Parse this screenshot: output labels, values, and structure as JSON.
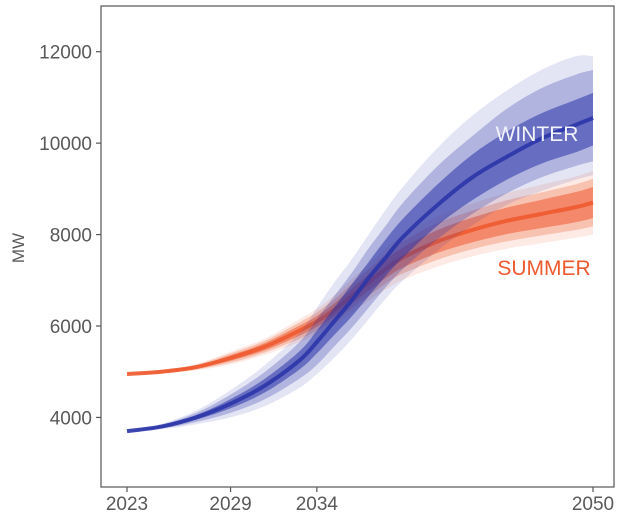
{
  "chart_data": {
    "type": "area",
    "title": "",
    "xlabel": "",
    "ylabel": "MW",
    "xlim": [
      2023,
      2050
    ],
    "ylim": [
      2500,
      13000
    ],
    "x_ticks": [
      2023,
      2029,
      2034,
      2050
    ],
    "y_ticks": [
      4000,
      6000,
      8000,
      10000,
      12000
    ],
    "grid": false,
    "legend": "none",
    "series": [
      {
        "name": "WINTER",
        "color": "#2b35a8",
        "x": [
          2023,
          2025,
          2027,
          2029,
          2031,
          2033,
          2034,
          2035,
          2036,
          2037,
          2038,
          2039,
          2041,
          2043,
          2045,
          2047,
          2049,
          2050
        ],
        "median": [
          3700,
          3800,
          4000,
          4300,
          4700,
          5250,
          5650,
          6100,
          6550,
          7050,
          7500,
          7950,
          8650,
          9250,
          9700,
          10100,
          10400,
          10550
        ],
        "band_50": {
          "lower": [
            3700,
            3780,
            3950,
            4200,
            4550,
            5050,
            5400,
            5800,
            6200,
            6650,
            7100,
            7500,
            8200,
            8750,
            9200,
            9550,
            9800,
            9950
          ],
          "upper": [
            3700,
            3820,
            4050,
            4400,
            4850,
            5450,
            5900,
            6400,
            6900,
            7400,
            7900,
            8350,
            9100,
            9750,
            10250,
            10650,
            10950,
            11100
          ]
        },
        "band_80": {
          "lower": [
            3700,
            3760,
            3900,
            4100,
            4400,
            4850,
            5150,
            5550,
            5950,
            6400,
            6850,
            7250,
            7900,
            8450,
            8900,
            9250,
            9500,
            9600
          ],
          "upper": [
            3700,
            3840,
            4100,
            4500,
            5000,
            5650,
            6150,
            6650,
            7150,
            7700,
            8200,
            8700,
            9500,
            10150,
            10750,
            11200,
            11500,
            11600
          ]
        },
        "band_95": {
          "lower": [
            3700,
            3740,
            3850,
            4000,
            4250,
            4650,
            4950,
            5300,
            5700,
            6150,
            6600,
            7000,
            7650,
            8200,
            8650,
            8950,
            9200,
            9300
          ],
          "upper": [
            3700,
            3860,
            4150,
            4600,
            5150,
            5850,
            6400,
            6950,
            7450,
            8000,
            8550,
            9050,
            9900,
            10600,
            11150,
            11600,
            11900,
            11900
          ]
        }
      },
      {
        "name": "SUMMER",
        "color": "#ee5a2f",
        "x": [
          2023,
          2025,
          2027,
          2029,
          2031,
          2033,
          2034,
          2035,
          2036,
          2037,
          2038,
          2039,
          2041,
          2043,
          2045,
          2047,
          2049,
          2050
        ],
        "median": [
          4950,
          5000,
          5100,
          5300,
          5550,
          5900,
          6100,
          6350,
          6650,
          6950,
          7250,
          7500,
          7850,
          8100,
          8300,
          8450,
          8600,
          8700
        ],
        "band_50": {
          "lower": [
            4950,
            4985,
            5070,
            5240,
            5470,
            5790,
            5980,
            6210,
            6490,
            6770,
            7050,
            7280,
            7600,
            7830,
            8010,
            8140,
            8270,
            8360
          ],
          "upper": [
            4950,
            5015,
            5130,
            5360,
            5630,
            6010,
            6220,
            6490,
            6810,
            7130,
            7450,
            7720,
            8100,
            8370,
            8590,
            8760,
            8930,
            9040
          ]
        },
        "band_80": {
          "lower": [
            4950,
            4975,
            5050,
            5200,
            5420,
            5720,
            5900,
            6120,
            6380,
            6660,
            6930,
            7150,
            7450,
            7680,
            7850,
            7980,
            8100,
            8180
          ],
          "upper": [
            4950,
            5025,
            5150,
            5400,
            5680,
            6080,
            6300,
            6580,
            6920,
            7240,
            7570,
            7850,
            8250,
            8520,
            8750,
            8920,
            9100,
            9220
          ]
        },
        "band_95": {
          "lower": [
            4950,
            4965,
            5030,
            5160,
            5370,
            5650,
            5820,
            6030,
            6280,
            6550,
            6800,
            7010,
            7300,
            7520,
            7690,
            7810,
            7930,
            8000
          ],
          "upper": [
            4950,
            5035,
            5170,
            5440,
            5730,
            6150,
            6380,
            6670,
            7020,
            7350,
            7700,
            7990,
            8400,
            8680,
            8910,
            9090,
            9270,
            9400
          ]
        }
      }
    ],
    "annotations": [
      {
        "text": "WINTER",
        "color": "#f2f3fa"
      },
      {
        "text": "SUMMER",
        "color": "#ee5a2f"
      }
    ]
  }
}
